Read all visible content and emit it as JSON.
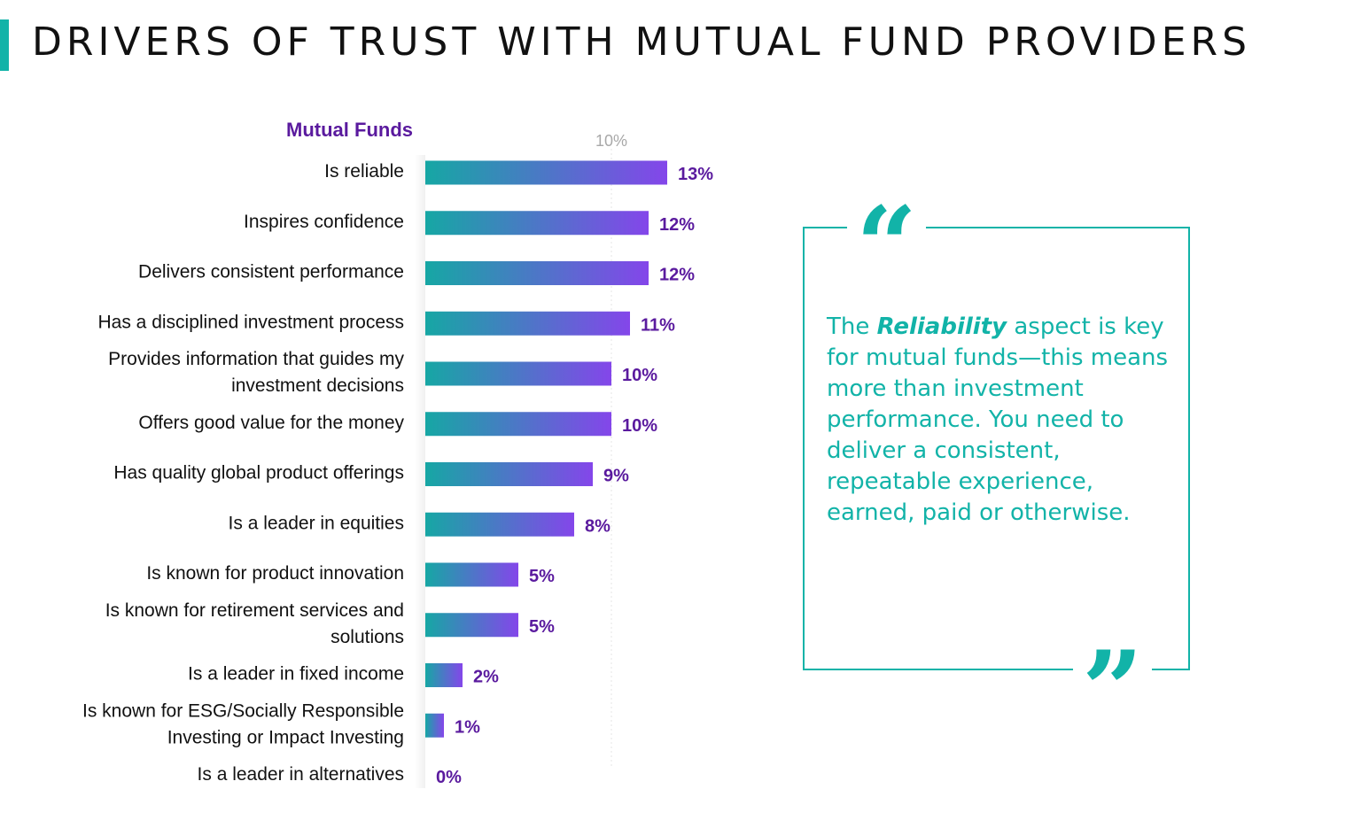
{
  "page": {
    "title": "DRIVERS OF TRUST WITH MUTUAL FUND PROVIDERS"
  },
  "colors": {
    "accent": "#12b3a8",
    "label": "#5a1a9e",
    "bar_start": "#16a7a4",
    "bar_end": "#8446ea"
  },
  "chart_data": {
    "type": "bar",
    "orientation": "horizontal",
    "series": [
      {
        "name": "Mutual Funds",
        "values": [
          13,
          12,
          12,
          11,
          10,
          10,
          9,
          8,
          5,
          5,
          2,
          1,
          0
        ]
      }
    ],
    "categories": [
      "Is reliable",
      "Inspires confidence",
      "Delivers consistent performance",
      "Has a disciplined investment process",
      "Provides information that guides my investment decisions",
      "Offers good value for the money",
      "Has quality global product offerings",
      "Is a leader in equities",
      "Is known for product innovation",
      "Is known for retirement services and solutions",
      "Is a leader in fixed income",
      "Is known for ESG/Socially Responsible Investing or Impact Investing",
      "Is a leader in alternatives"
    ],
    "value_labels": [
      "13%",
      "12%",
      "12%",
      "11%",
      "10%",
      "10%",
      "9%",
      "8%",
      "5%",
      "5%",
      "2%",
      "1%",
      "0%"
    ],
    "reference_line": {
      "value": 10,
      "label": "10%"
    },
    "xlim": [
      0,
      13
    ],
    "grid": false,
    "legend": "none"
  },
  "quote": {
    "open_mark": "“",
    "close_mark": "”",
    "text_before": "The ",
    "emphasis": "Reliability",
    "text_after": " aspect is key for mutual funds—this means more than investment performance. You need to deliver a consistent, repeatable experience, earned, paid or otherwise."
  }
}
